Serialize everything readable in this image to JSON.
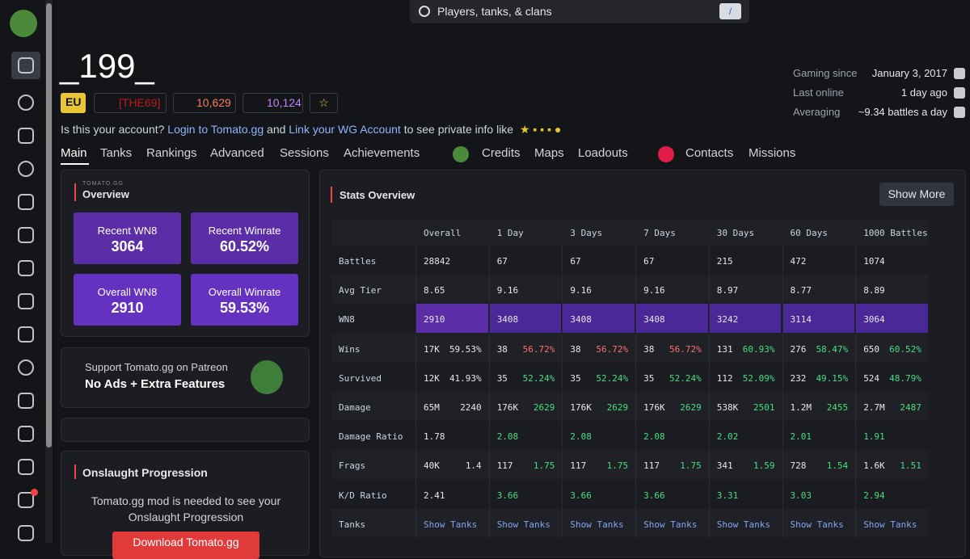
{
  "search": {
    "placeholder": "Players, tanks, & clans",
    "shortcut": "/"
  },
  "player": {
    "name": "_199_",
    "region": "EU",
    "clan": "[THE69]",
    "rating1": "10,629",
    "rating2": "10,124"
  },
  "notice": {
    "lead": "Is this your account?",
    "login": "Login to Tomato.gg",
    "and": "and",
    "link": "Link your WG Account",
    "tail": "to see private info like"
  },
  "nav": [
    "Main",
    "Tanks",
    "Rankings",
    "Advanced",
    "Sessions",
    "Achievements",
    "Credits",
    "Maps",
    "Loadouts",
    "Contacts",
    "Missions"
  ],
  "info": [
    {
      "label": "Gaming since",
      "value": "January 3, 2017"
    },
    {
      "label": "Last online",
      "value": "1 day ago"
    },
    {
      "label": "Averaging",
      "value": "~9.34 battles a day"
    }
  ],
  "overview": {
    "brand": "TOMATO.GG",
    "title": "Overview",
    "tiles": [
      {
        "label": "Recent WN8",
        "value": "3064"
      },
      {
        "label": "Recent Winrate",
        "value": "60.52%"
      },
      {
        "label": "Overall WN8",
        "value": "2910"
      },
      {
        "label": "Overall Winrate",
        "value": "59.53%"
      }
    ]
  },
  "patreon": {
    "line1": "Support Tomato.gg on Patreon",
    "line2": "No Ads + Extra Features"
  },
  "onslaught": {
    "title": "Onslaught Progression",
    "text": "Tomato.gg mod is needed to see your Onslaught Progression",
    "button": "Download Tomato.gg"
  },
  "stats": {
    "title": "Stats Overview",
    "button": "Show More",
    "highlight_row": 2,
    "columns": [
      "Overall",
      "1 Day",
      "3 Days",
      "7 Days",
      "30 Days",
      "60 Days",
      "1000 Battles"
    ],
    "rows": [
      {
        "label": "Battles",
        "cells": [
          {
            "value": "28842"
          },
          {
            "value": "67"
          },
          {
            "value": "67"
          },
          {
            "value": "67"
          },
          {
            "value": "215"
          },
          {
            "value": "472"
          },
          {
            "value": "1074"
          }
        ]
      },
      {
        "label": "Avg Tier",
        "cells": [
          {
            "value": "8.65"
          },
          {
            "value": "9.16"
          },
          {
            "value": "9.16"
          },
          {
            "value": "9.16"
          },
          {
            "value": "8.97"
          },
          {
            "value": "8.77"
          },
          {
            "value": "8.89"
          }
        ]
      },
      {
        "label": "WN8",
        "cells": [
          {
            "value": "2910"
          },
          {
            "value": "3408"
          },
          {
            "value": "3408"
          },
          {
            "value": "3408"
          },
          {
            "value": "3242"
          },
          {
            "value": "3114"
          },
          {
            "value": "3064"
          }
        ]
      },
      {
        "label": "Wins",
        "cells": [
          {
            "value": "17K",
            "detail": "59.53%"
          },
          {
            "value": "38",
            "detail": "56.72%",
            "color": "#f87171"
          },
          {
            "value": "38",
            "detail": "56.72%",
            "color": "#f87171"
          },
          {
            "value": "38",
            "detail": "56.72%",
            "color": "#f87171"
          },
          {
            "value": "131",
            "detail": "60.93%",
            "color": "#4ade80"
          },
          {
            "value": "276",
            "detail": "58.47%",
            "color": "#4ade80"
          },
          {
            "value": "650",
            "detail": "60.52%",
            "color": "#4ade80"
          }
        ]
      },
      {
        "label": "Survived",
        "cells": [
          {
            "value": "12K",
            "detail": "41.93%"
          },
          {
            "value": "35",
            "detail": "52.24%",
            "color": "#4ade80"
          },
          {
            "value": "35",
            "detail": "52.24%",
            "color": "#4ade80"
          },
          {
            "value": "35",
            "detail": "52.24%",
            "color": "#4ade80"
          },
          {
            "value": "112",
            "detail": "52.09%",
            "color": "#4ade80"
          },
          {
            "value": "232",
            "detail": "49.15%",
            "color": "#4ade80"
          },
          {
            "value": "524",
            "detail": "48.79%",
            "color": "#4ade80"
          }
        ]
      },
      {
        "label": "Damage",
        "cells": [
          {
            "value": "65M",
            "detail": "2240"
          },
          {
            "value": "176K",
            "detail": "2629",
            "color": "#4ade80"
          },
          {
            "value": "176K",
            "detail": "2629",
            "color": "#4ade80"
          },
          {
            "value": "176K",
            "detail": "2629",
            "color": "#4ade80"
          },
          {
            "value": "538K",
            "detail": "2501",
            "color": "#4ade80"
          },
          {
            "value": "1.2M",
            "detail": "2455",
            "color": "#4ade80"
          },
          {
            "value": "2.7M",
            "detail": "2487",
            "color": "#4ade80"
          }
        ]
      },
      {
        "label": "Damage Ratio",
        "cells": [
          {
            "value": "1.78"
          },
          {
            "value": "2.08",
            "color": "#4ade80"
          },
          {
            "value": "2.08",
            "color": "#4ade80"
          },
          {
            "value": "2.08",
            "color": "#4ade80"
          },
          {
            "value": "2.02",
            "color": "#4ade80"
          },
          {
            "value": "2.01",
            "color": "#4ade80"
          },
          {
            "value": "1.91",
            "color": "#4ade80"
          }
        ]
      },
      {
        "label": "Frags",
        "cells": [
          {
            "value": "40K",
            "detail": "1.4"
          },
          {
            "value": "117",
            "detail": "1.75",
            "color": "#4ade80"
          },
          {
            "value": "117",
            "detail": "1.75",
            "color": "#4ade80"
          },
          {
            "value": "117",
            "detail": "1.75",
            "color": "#4ade80"
          },
          {
            "value": "341",
            "detail": "1.59",
            "color": "#4ade80"
          },
          {
            "value": "728",
            "detail": "1.54",
            "color": "#4ade80"
          },
          {
            "value": "1.6K",
            "detail": "1.51",
            "color": "#4ade80"
          }
        ]
      },
      {
        "label": "K/D Ratio",
        "cells": [
          {
            "value": "2.41"
          },
          {
            "value": "3.66",
            "color": "#4ade80"
          },
          {
            "value": "3.66",
            "color": "#4ade80"
          },
          {
            "value": "3.66",
            "color": "#4ade80"
          },
          {
            "value": "3.31",
            "color": "#4ade80"
          },
          {
            "value": "3.03",
            "color": "#4ade80"
          },
          {
            "value": "2.94",
            "color": "#4ade80"
          }
        ]
      },
      {
        "label": "Tanks",
        "cells": [
          {
            "value": "Show Tanks",
            "color": "#7ea6f7"
          },
          {
            "value": "Show Tanks",
            "color": "#7ea6f7"
          },
          {
            "value": "Show Tanks",
            "color": "#7ea6f7"
          },
          {
            "value": "Show Tanks",
            "color": "#7ea6f7"
          },
          {
            "value": "Show Tanks",
            "color": "#7ea6f7"
          },
          {
            "value": "Show Tanks",
            "color": "#7ea6f7"
          },
          {
            "value": "Show Tanks",
            "color": "#7ea6f7"
          }
        ]
      }
    ]
  }
}
